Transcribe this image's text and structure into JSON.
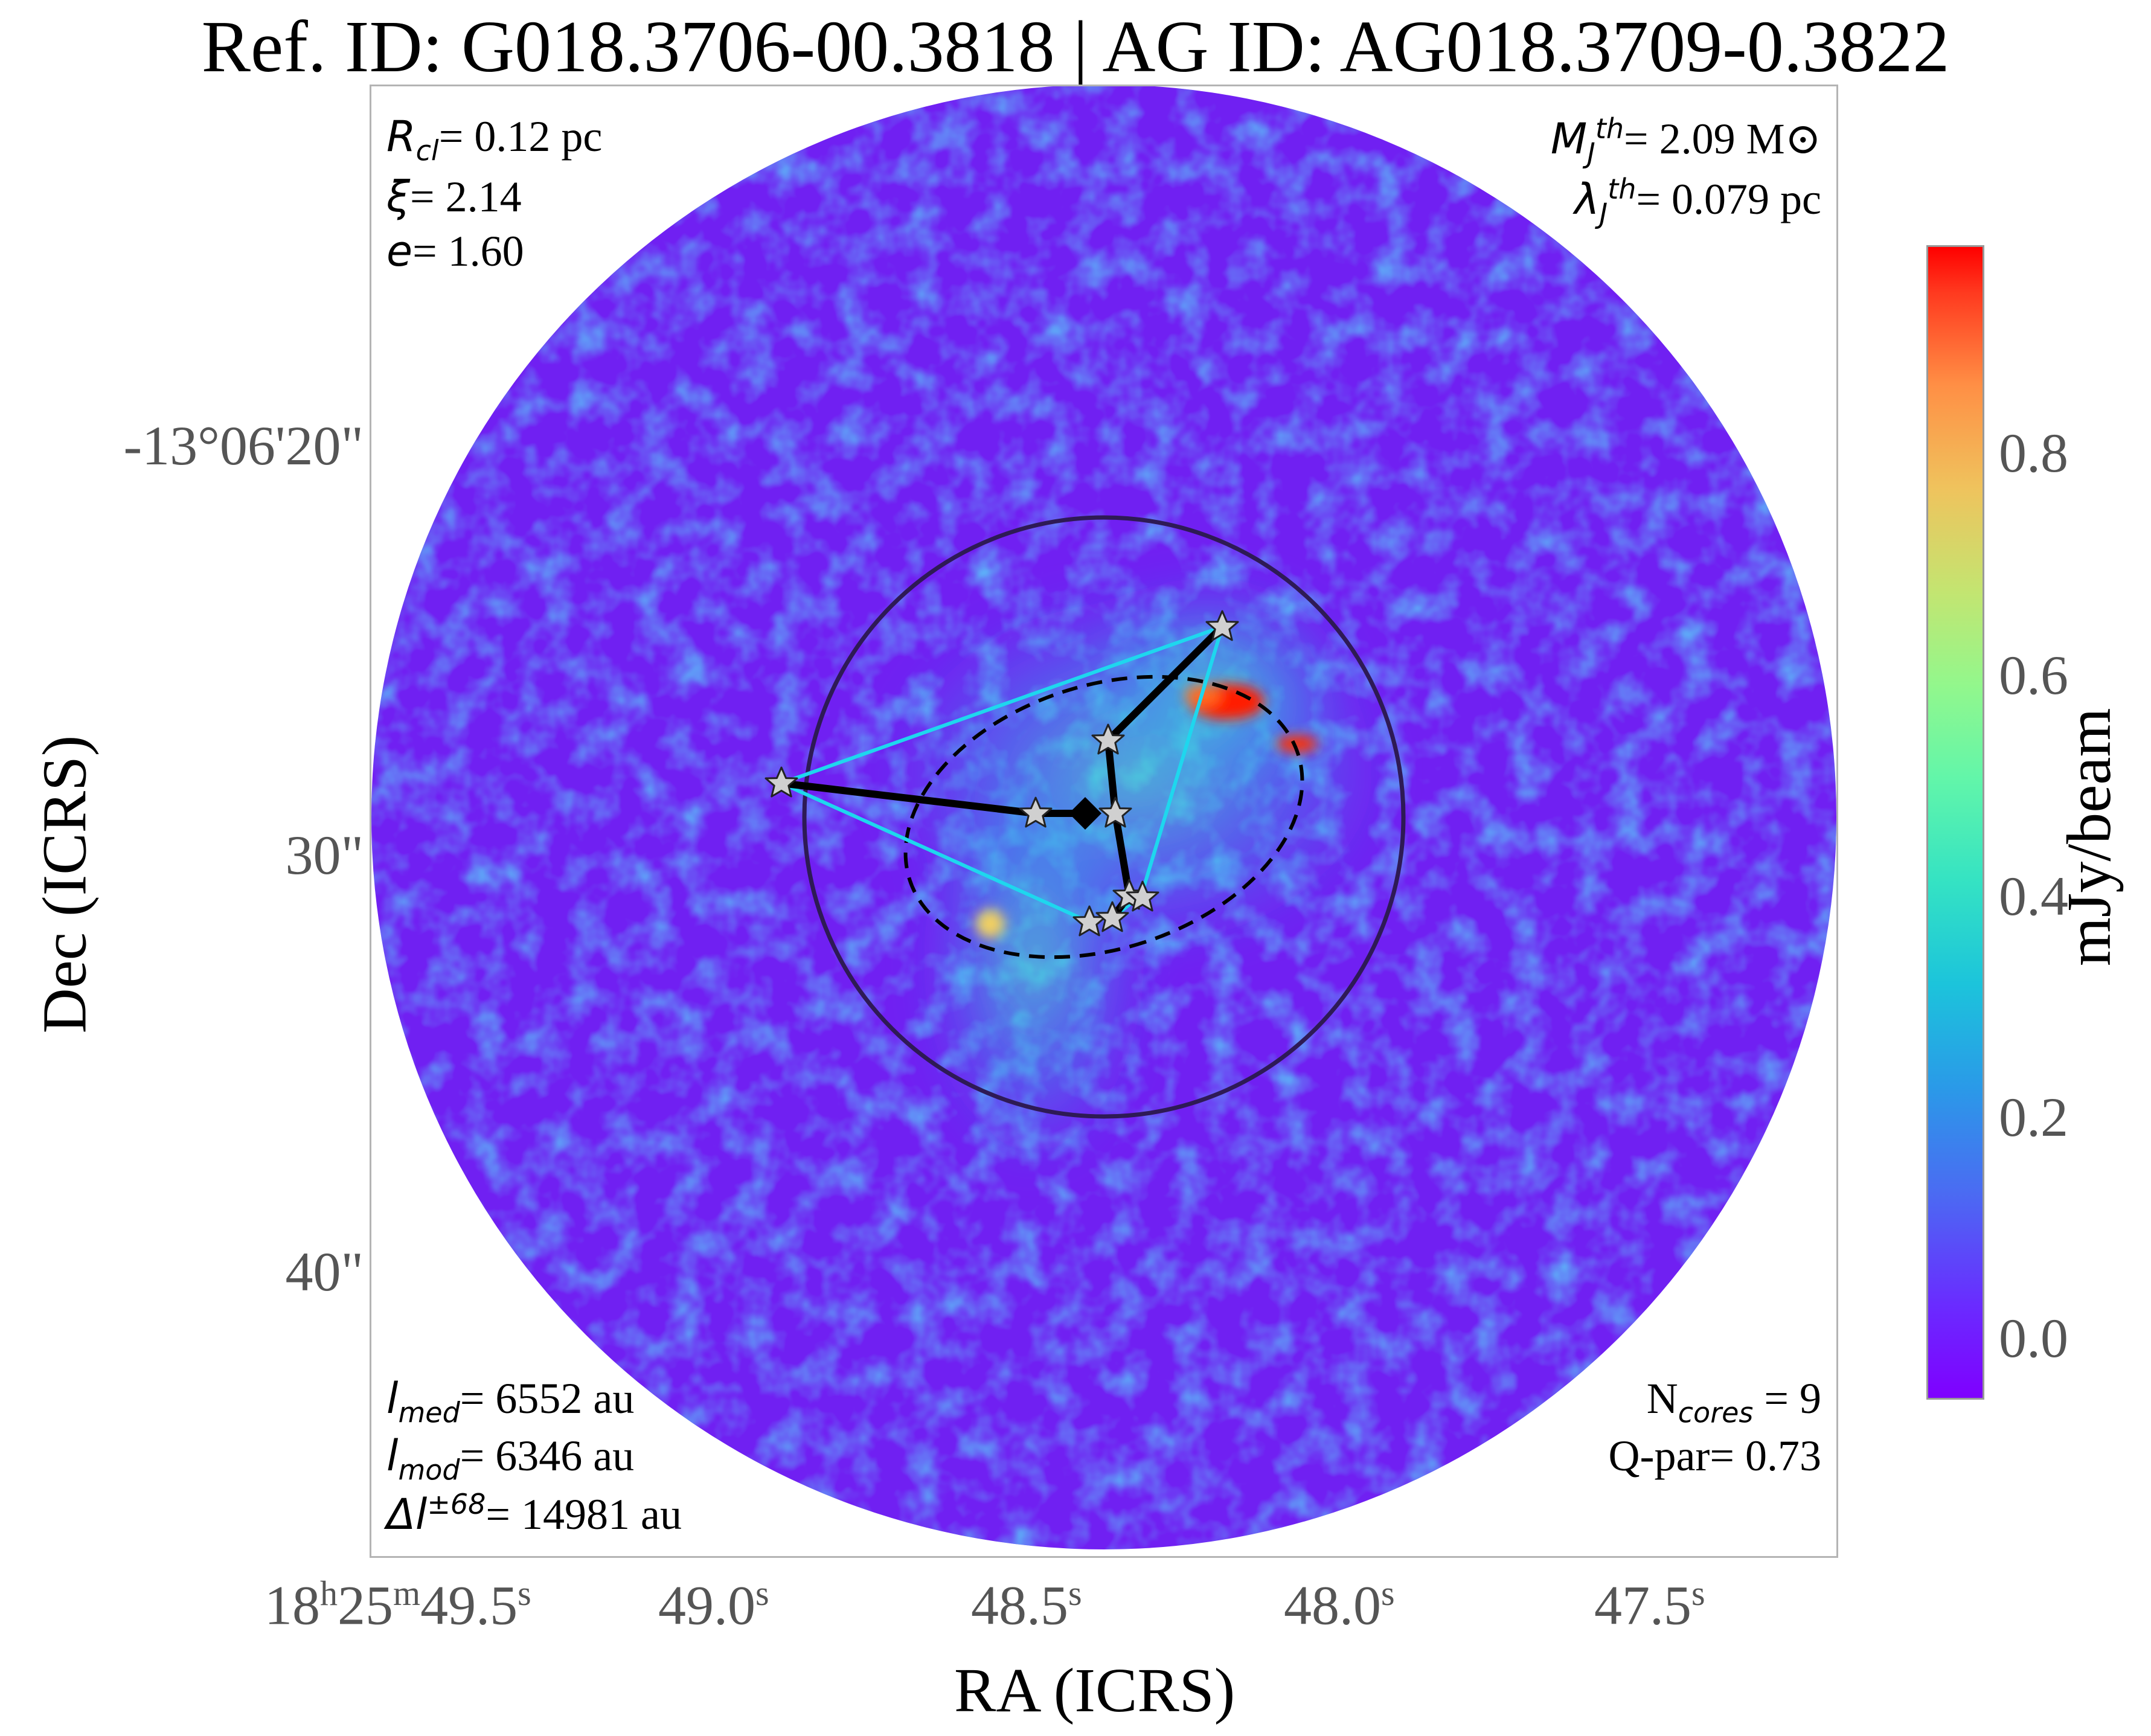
{
  "title": "Ref. ID: G018.3706-00.3818 | AG ID: AG018.3709-0.3822",
  "annotations": {
    "r_cl_label": "R",
    "r_cl_sub": "cl",
    "r_cl_value": "= 0.12 pc",
    "xi_label": "ξ",
    "xi_value": "= 2.14",
    "e_label": "e",
    "e_value": "= 1.60",
    "mj_label": "M",
    "mj_sup": "th",
    "mj_sub": "J",
    "mj_value": "= 2.09 M⊙",
    "lambda_label": "λ",
    "lambda_sup": "th",
    "lambda_sub": "J",
    "lambda_value": "= 0.079 pc",
    "l_med_label": "l",
    "l_med_sub": "med",
    "l_med_value": "= 6552 au",
    "l_mod_label": "l",
    "l_mod_sub": "mod",
    "l_mod_value": "= 6346 au",
    "dl_label": "Δl",
    "dl_sup": "±68",
    "dl_value": "= 14981 au",
    "ncores_label": "N",
    "ncores_sub": "cores",
    "ncores_value": " = 9",
    "qpar": "Q-par= 0.73"
  },
  "axes": {
    "xlabel": "RA (ICRS)",
    "ylabel": "Dec (ICRS)",
    "xticks": [
      {
        "pre": "18",
        "h": "h",
        "mid": "25",
        "m": "m",
        "val": "49.5",
        "s": "s"
      },
      {
        "val": "49.0",
        "s": "s"
      },
      {
        "val": "48.5",
        "s": "s"
      },
      {
        "val": "48.0",
        "s": "s"
      },
      {
        "val": "47.5",
        "s": "s"
      }
    ],
    "yticks": [
      "-13°06'20\"",
      "30\"",
      "40\""
    ]
  },
  "colorbar": {
    "label": "mJy/beam",
    "ticks": [
      "0.8",
      "0.6",
      "0.4",
      "0.2",
      "0.0"
    ],
    "colormap": "rainbow",
    "min_color": "#7f00ff",
    "max_color": "#ff0000"
  },
  "colors": {
    "background_field": "#7020f2",
    "clump_circle": "#2e1a55",
    "mst_edge": "#000000",
    "hull_edge": "#1ed7ee",
    "core_star": "#d0d0d0",
    "hotspot": "#ff1a00"
  }
}
